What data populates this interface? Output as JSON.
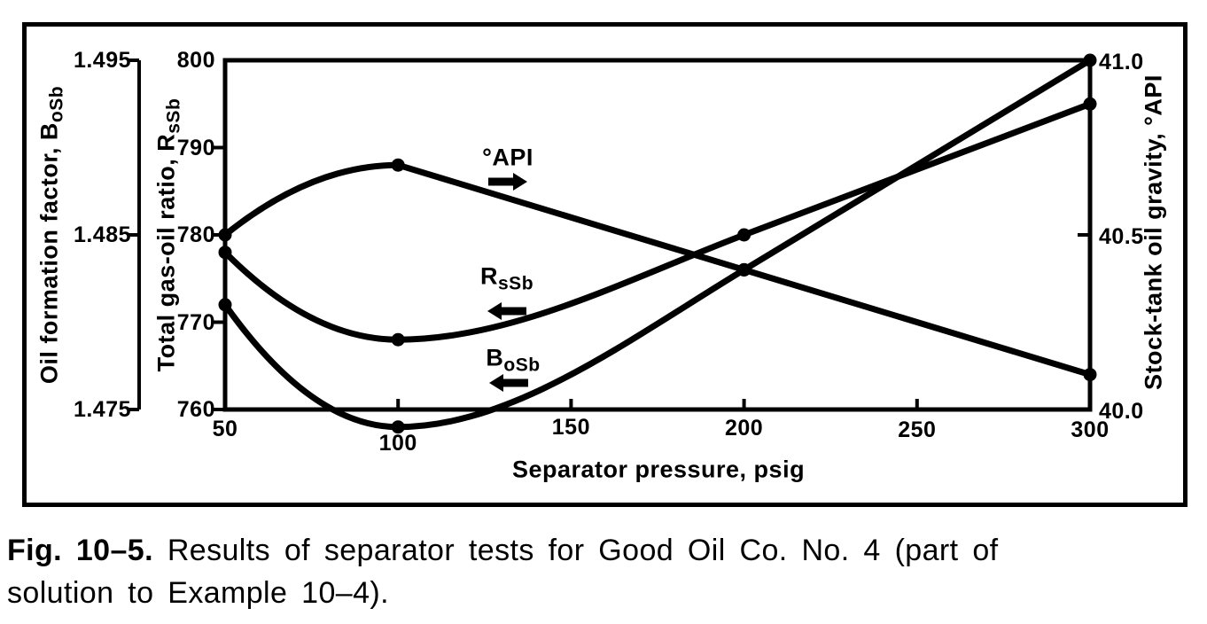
{
  "figure_caption": {
    "prefix": "Fig. 10–5.",
    "line1_rest": "Results of separator tests for Good Oil Co. No. 4 (part of",
    "line2": "solution to Example 10–4)."
  },
  "axes": {
    "x": {
      "title": "Separator pressure, psig",
      "tick_labels": [
        "50",
        "100",
        "150",
        "200",
        "250",
        "300"
      ]
    },
    "bo": {
      "title_prefix": "Oil formation factor, ",
      "symbol_base": "B",
      "symbol_sub": "oSb",
      "tick_labels": [
        "1.495",
        "1.485",
        "1.475"
      ]
    },
    "rs": {
      "title_prefix": "Total gas-oil ratio, ",
      "symbol_base": "R",
      "symbol_sub": "sSb",
      "tick_labels": [
        "800",
        "790",
        "780",
        "770",
        "760"
      ]
    },
    "api": {
      "title": "Stock-tank oil gravity, °API",
      "tick_labels": [
        "41.0",
        "40.5",
        "40.0"
      ]
    }
  },
  "curve_labels": {
    "api": {
      "text": "°API"
    },
    "rs": {
      "base": "R",
      "sub": "sSb"
    },
    "bo": {
      "base": "B",
      "sub": "oSb"
    }
  },
  "chart_data": {
    "type": "line",
    "title": "Results of separator tests for Good Oil Co. No. 4",
    "xlabel": "Separator pressure, psig",
    "xlim": [
      50,
      300
    ],
    "x_ticks": [
      50,
      100,
      150,
      200,
      250,
      300
    ],
    "grid": false,
    "marker": "dot",
    "line_color": "#000000",
    "x": [
      50,
      100,
      200,
      300
    ],
    "series": [
      {
        "name": "Stock-tank oil gravity, °API",
        "axis": "api",
        "axis_side": "right",
        "ylim": [
          40.0,
          41.0
        ],
        "y_ticks": [
          41.0,
          40.5,
          40.0
        ],
        "values": [
          40.5,
          40.7,
          40.4,
          40.1
        ],
        "pointer_arrow": "right"
      },
      {
        "name": "Total gas-oil ratio, RsSb",
        "axis": "rs",
        "axis_side": "left",
        "ylim": [
          760,
          800
        ],
        "y_ticks": [
          800,
          790,
          780,
          770,
          760
        ],
        "values": [
          778,
          768,
          780,
          795
        ],
        "pointer_arrow": "left"
      },
      {
        "name": "Oil formation factor, BoSb",
        "axis": "bo",
        "axis_side": "far-left",
        "ylim": [
          1.475,
          1.495
        ],
        "y_ticks": [
          1.495,
          1.485,
          1.475
        ],
        "values": [
          1.481,
          1.474,
          1.483,
          1.495
        ],
        "pointer_arrow": "left"
      }
    ]
  }
}
